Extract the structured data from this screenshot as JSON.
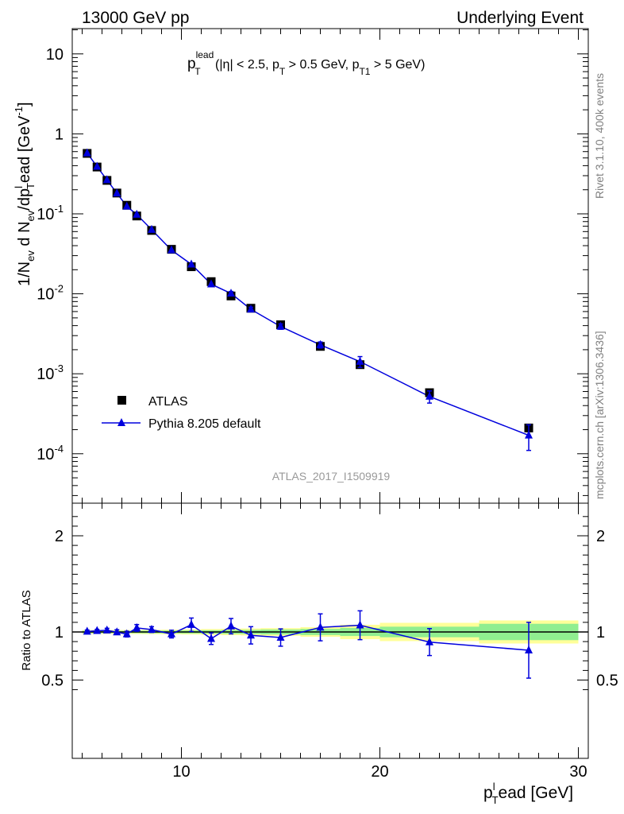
{
  "header": {
    "left": "13000 GeV pp",
    "right": "Underlying Event"
  },
  "side_labels": {
    "rivet": "Rivet 3.1.10,  400k events",
    "mcplots": "mcplots.cern.ch [arXiv:1306.3436]"
  },
  "colors": {
    "data": "#000000",
    "mc": "#0000dd",
    "band_inner": "#90ee90",
    "band_outer": "#ffff99",
    "watermark": "#999999",
    "side_text": "#808080"
  },
  "chart_data": [
    {
      "type": "scatter",
      "panel": "main",
      "title": "p_T^lead (|η| < 2.5, p_T > 0.5 GeV, p_T1 > 5 GeV)",
      "ylabel": "1/N_ev d N_ev/dp_T^lead [GeV^-1]",
      "xlabel": "",
      "xlim": [
        4.5,
        30.5
      ],
      "ylim": [
        2.5e-05,
        20
      ],
      "yscale": "log",
      "yticks": [
        0.0001,
        0.001,
        0.01,
        0.1,
        1,
        10
      ],
      "ytick_labels": [
        "10^-4",
        "10^-3",
        "10^-2",
        "10^-1",
        "1",
        "10"
      ],
      "legend_position": "lower-left",
      "watermark": "ATLAS_2017_I1509919",
      "x": [
        5.25,
        5.75,
        6.25,
        6.75,
        7.25,
        7.75,
        8.5,
        9.5,
        10.5,
        11.5,
        12.5,
        13.5,
        15,
        17,
        19,
        22.5,
        27.5
      ],
      "series": [
        {
          "name": "ATLAS",
          "marker": "square",
          "values": [
            0.57,
            0.385,
            0.262,
            0.182,
            0.128,
            0.094,
            0.062,
            0.036,
            0.0218,
            0.0142,
            0.0094,
            0.0066,
            0.0041,
            0.0022,
            0.0013,
            0.00058,
            0.00021
          ]
        },
        {
          "name": "Pythia 8.205 default",
          "marker": "triangle",
          "values": [
            0.575,
            0.39,
            0.265,
            0.181,
            0.124,
            0.098,
            0.0635,
            0.0352,
            0.0234,
            0.0132,
            0.0101,
            0.0064,
            0.0039,
            0.0023,
            0.00142,
            0.00052,
            0.00017
          ],
          "errors": [
            0.004,
            0.003,
            0.002,
            0.002,
            0.0015,
            0.0012,
            0.0008,
            0.0006,
            0.0008,
            0.0005,
            0.0006,
            0.0004,
            0.0003,
            0.0002,
            0.00022,
            9e-05,
            6e-05
          ]
        }
      ]
    },
    {
      "type": "line",
      "panel": "ratio",
      "ylabel": "Ratio to ATLAS",
      "xlabel": "p_T^lead [GeV]",
      "xlim": [
        4.5,
        30.5
      ],
      "ylim": [
        0.3,
        2.3
      ],
      "xticks": [
        10,
        20,
        30
      ],
      "yticks": [
        0.5,
        1,
        2
      ],
      "ytick_labels": [
        "0.5",
        "1",
        "2"
      ],
      "band_edges": [
        5,
        5.5,
        6,
        6.5,
        7,
        7.5,
        8,
        9,
        10,
        11,
        12,
        13,
        14,
        16,
        18,
        20,
        25,
        30
      ],
      "band_inner": [
        0.012,
        0.012,
        0.012,
        0.012,
        0.012,
        0.013,
        0.014,
        0.015,
        0.016,
        0.018,
        0.02,
        0.022,
        0.026,
        0.032,
        0.042,
        0.055,
        0.085
      ],
      "band_outer": [
        0.02,
        0.02,
        0.02,
        0.02,
        0.02,
        0.021,
        0.022,
        0.024,
        0.026,
        0.03,
        0.033,
        0.036,
        0.04,
        0.05,
        0.075,
        0.095,
        0.12
      ],
      "x": [
        5.25,
        5.75,
        6.25,
        6.75,
        7.25,
        7.75,
        8.5,
        9.5,
        10.5,
        11.5,
        12.5,
        13.5,
        15,
        17,
        19,
        22.5,
        27.5
      ],
      "series": [
        {
          "name": "Pythia 8.205 default",
          "values": [
            1.005,
            1.012,
            1.018,
            0.998,
            0.978,
            1.042,
            1.025,
            0.978,
            1.075,
            0.93,
            1.06,
            0.965,
            0.942,
            1.048,
            1.07,
            0.895,
            0.81
          ],
          "errors": [
            0.015,
            0.015,
            0.02,
            0.025,
            0.03,
            0.035,
            0.03,
            0.04,
            0.07,
            0.06,
            0.08,
            0.09,
            0.09,
            0.14,
            0.15,
            0.14,
            0.29
          ]
        }
      ]
    }
  ]
}
